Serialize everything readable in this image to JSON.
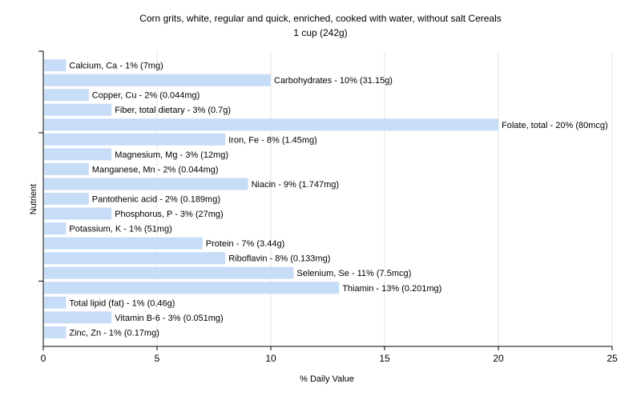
{
  "chart_data": {
    "type": "bar",
    "orientation": "horizontal",
    "title": "Corn grits, white, regular and quick, enriched, cooked with water, without salt Cereals",
    "subtitle": "1 cup (242g)",
    "xlabel": "% Daily Value",
    "ylabel": "Nutrient",
    "xlim": [
      0,
      25
    ],
    "xticks": [
      0,
      5,
      10,
      15,
      20,
      25
    ],
    "grid": true,
    "bar_color": "#c6dcf7",
    "categories": [
      "Calcium, Ca",
      "Carbohydrates",
      "Copper, Cu",
      "Fiber, total dietary",
      "Folate, total",
      "Iron, Fe",
      "Magnesium, Mg",
      "Manganese, Mn",
      "Niacin",
      "Pantothenic acid",
      "Phosphorus, P",
      "Potassium, K",
      "Protein",
      "Riboflavin",
      "Selenium, Se",
      "Thiamin",
      "Total lipid (fat)",
      "Vitamin B-6",
      "Zinc, Zn"
    ],
    "values": [
      1,
      10,
      2,
      3,
      20,
      8,
      3,
      2,
      9,
      2,
      3,
      1,
      7,
      8,
      11,
      13,
      1,
      3,
      1
    ],
    "labels": [
      "Calcium, Ca - 1% (7mg)",
      "Carbohydrates - 10% (31.15g)",
      "Copper, Cu - 2% (0.044mg)",
      "Fiber, total dietary - 3% (0.7g)",
      "Folate, total - 20% (80mcg)",
      "Iron, Fe - 8% (1.45mg)",
      "Magnesium, Mg - 3% (12mg)",
      "Manganese, Mn - 2% (0.044mg)",
      "Niacin - 9% (1.747mg)",
      "Pantothenic acid - 2% (0.189mg)",
      "Phosphorus, P - 3% (27mg)",
      "Potassium, K - 1% (51mg)",
      "Protein - 7% (3.44g)",
      "Riboflavin - 8% (0.133mg)",
      "Selenium, Se - 11% (7.5mcg)",
      "Thiamin - 13% (0.201mg)",
      "Total lipid (fat) - 1% (0.46g)",
      "Vitamin B-6 - 3% (0.051mg)",
      "Zinc, Zn - 1% (0.17mg)"
    ]
  }
}
